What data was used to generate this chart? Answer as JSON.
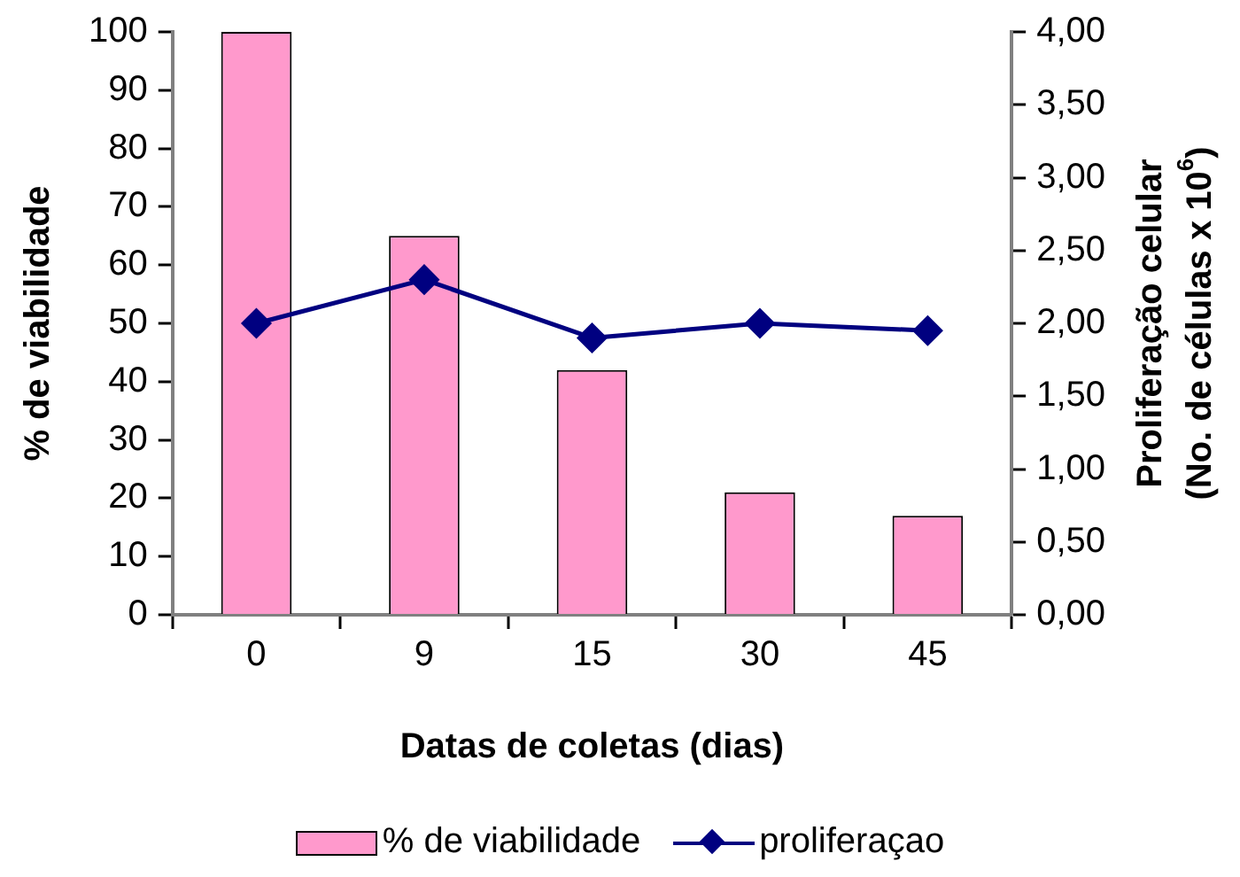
{
  "chart_data": {
    "type": "bar",
    "xlabel": "Datas de coletas (dias)",
    "ylabel": "% de viabilidade",
    "y2label": "Proliferação celular\n(No. de células x 10$^{6}$)",
    "categories": [
      "0",
      "9",
      "15",
      "30",
      "45"
    ],
    "series": [
      {
        "name": "% de viabilidade",
        "color": "#ff99cc",
        "values": [
          100,
          65,
          42,
          21,
          17
        ]
      },
      {
        "name": "proliferaçao",
        "type": "line",
        "axis": "y2",
        "color": "#000080",
        "marker": "diamond",
        "values": [
          2.0,
          2.3,
          1.9,
          2.0,
          1.95
        ]
      }
    ],
    "ylim": [
      0,
      100
    ],
    "yticks": [
      0,
      10,
      20,
      30,
      40,
      50,
      60,
      70,
      80,
      90,
      100
    ],
    "y2lim": [
      0,
      4
    ],
    "y2ticks": [
      {
        "value": 0,
        "label": "0,00"
      },
      {
        "value": 0.5,
        "label": "0,50"
      },
      {
        "value": 1,
        "label": "1,00"
      },
      {
        "value": 1.5,
        "label": "1,50"
      },
      {
        "value": 2,
        "label": "2,00"
      },
      {
        "value": 2.5,
        "label": "2,50"
      },
      {
        "value": 3,
        "label": "3,00"
      },
      {
        "value": 3.5,
        "label": "3,50"
      },
      {
        "value": 4,
        "label": "4,00"
      }
    ],
    "grid": false,
    "legend": "bottom"
  }
}
